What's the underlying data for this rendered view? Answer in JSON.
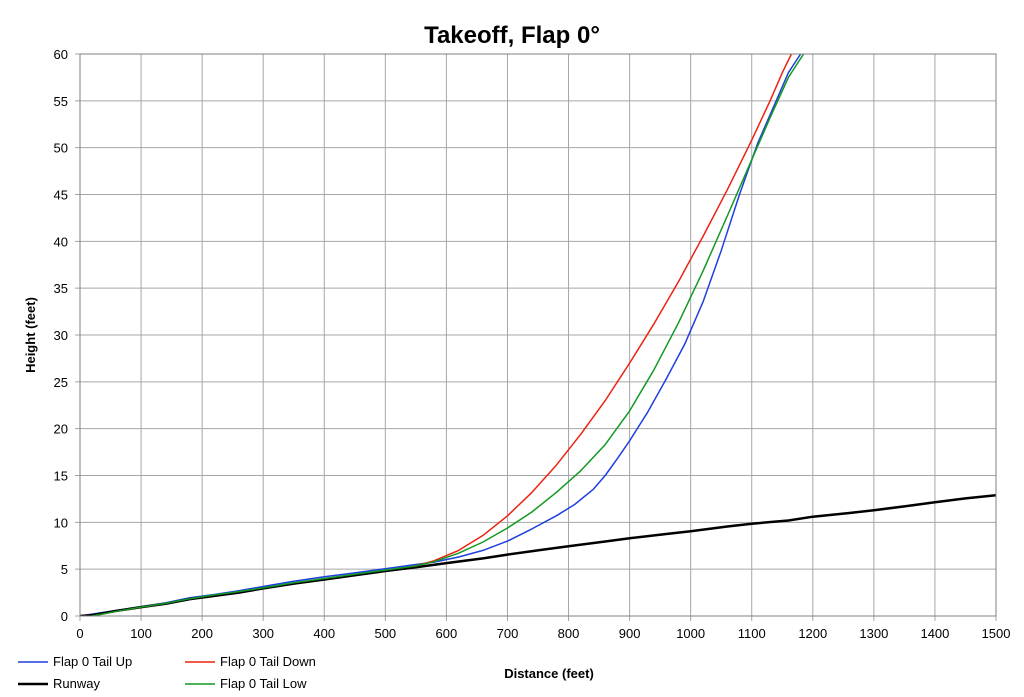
{
  "chart_data": {
    "type": "line",
    "title": "Takeoff, Flap 0°",
    "xlabel": "Distance (feet)",
    "ylabel": "Height (feet)",
    "xlim": [
      0,
      1500
    ],
    "ylim": [
      0,
      60
    ],
    "xticks": [
      0,
      100,
      200,
      300,
      400,
      500,
      600,
      700,
      800,
      900,
      1000,
      1100,
      1200,
      1300,
      1400,
      1500
    ],
    "yticks": [
      0,
      5,
      10,
      15,
      20,
      25,
      30,
      35,
      40,
      45,
      50,
      55,
      60
    ],
    "grid": true,
    "legend_position": "bottom-left",
    "series": [
      {
        "name": "Flap 0 Tail Up",
        "color": "#1f3fe0",
        "points": [
          [
            0,
            0
          ],
          [
            20,
            0.2
          ],
          [
            60,
            0.6
          ],
          [
            100,
            1.0
          ],
          [
            140,
            1.4
          ],
          [
            180,
            1.95
          ],
          [
            220,
            2.3
          ],
          [
            260,
            2.7
          ],
          [
            300,
            3.15
          ],
          [
            350,
            3.7
          ],
          [
            400,
            4.2
          ],
          [
            450,
            4.6
          ],
          [
            500,
            5.05
          ],
          [
            550,
            5.5
          ],
          [
            580,
            5.75
          ],
          [
            620,
            6.3
          ],
          [
            660,
            7.0
          ],
          [
            700,
            8.0
          ],
          [
            740,
            9.3
          ],
          [
            780,
            10.7
          ],
          [
            810,
            11.9
          ],
          [
            840,
            13.5
          ],
          [
            860,
            15.0
          ],
          [
            880,
            16.8
          ],
          [
            900,
            18.7
          ],
          [
            930,
            21.8
          ],
          [
            960,
            25.3
          ],
          [
            990,
            29.0
          ],
          [
            1020,
            33.5
          ],
          [
            1050,
            39.0
          ],
          [
            1080,
            45.0
          ],
          [
            1110,
            50.5
          ],
          [
            1140,
            55.0
          ],
          [
            1160,
            58.0
          ],
          [
            1180,
            60.0
          ]
        ]
      },
      {
        "name": "Flap 0 Tail Down",
        "color": "#ee2211",
        "points": [
          [
            20,
            0
          ],
          [
            60,
            0.5
          ],
          [
            100,
            0.9
          ],
          [
            140,
            1.3
          ],
          [
            180,
            1.8
          ],
          [
            220,
            2.2
          ],
          [
            260,
            2.55
          ],
          [
            300,
            2.95
          ],
          [
            350,
            3.45
          ],
          [
            400,
            3.95
          ],
          [
            450,
            4.4
          ],
          [
            500,
            4.85
          ],
          [
            550,
            5.35
          ],
          [
            580,
            5.9
          ],
          [
            620,
            7.0
          ],
          [
            660,
            8.6
          ],
          [
            700,
            10.7
          ],
          [
            740,
            13.2
          ],
          [
            780,
            16.1
          ],
          [
            820,
            19.4
          ],
          [
            860,
            23.0
          ],
          [
            900,
            27.0
          ],
          [
            940,
            31.2
          ],
          [
            980,
            35.7
          ],
          [
            1020,
            40.5
          ],
          [
            1060,
            45.5
          ],
          [
            1100,
            50.8
          ],
          [
            1130,
            55.0
          ],
          [
            1150,
            58.0
          ],
          [
            1165,
            60.0
          ]
        ]
      },
      {
        "name": "Runway",
        "color": "#000000",
        "points": [
          [
            0,
            0
          ],
          [
            20,
            0.1
          ],
          [
            60,
            0.55
          ],
          [
            100,
            0.95
          ],
          [
            140,
            1.3
          ],
          [
            180,
            1.8
          ],
          [
            220,
            2.15
          ],
          [
            260,
            2.5
          ],
          [
            300,
            2.95
          ],
          [
            350,
            3.45
          ],
          [
            400,
            3.9
          ],
          [
            450,
            4.35
          ],
          [
            500,
            4.8
          ],
          [
            550,
            5.2
          ],
          [
            600,
            5.65
          ],
          [
            660,
            6.15
          ],
          [
            700,
            6.55
          ],
          [
            760,
            7.1
          ],
          [
            800,
            7.45
          ],
          [
            860,
            7.95
          ],
          [
            900,
            8.3
          ],
          [
            960,
            8.75
          ],
          [
            1000,
            9.05
          ],
          [
            1060,
            9.55
          ],
          [
            1100,
            9.85
          ],
          [
            1160,
            10.2
          ],
          [
            1200,
            10.6
          ],
          [
            1260,
            11.0
          ],
          [
            1300,
            11.3
          ],
          [
            1350,
            11.7
          ],
          [
            1400,
            12.15
          ],
          [
            1450,
            12.55
          ],
          [
            1500,
            12.9
          ]
        ]
      },
      {
        "name": "Flap 0 Tail Low",
        "color": "#119922",
        "points": [
          [
            20,
            0
          ],
          [
            60,
            0.5
          ],
          [
            100,
            0.95
          ],
          [
            140,
            1.35
          ],
          [
            180,
            1.85
          ],
          [
            220,
            2.25
          ],
          [
            260,
            2.6
          ],
          [
            300,
            3.0
          ],
          [
            350,
            3.55
          ],
          [
            400,
            4.0
          ],
          [
            450,
            4.45
          ],
          [
            500,
            4.9
          ],
          [
            550,
            5.35
          ],
          [
            580,
            5.8
          ],
          [
            620,
            6.7
          ],
          [
            660,
            7.9
          ],
          [
            700,
            9.4
          ],
          [
            740,
            11.1
          ],
          [
            780,
            13.2
          ],
          [
            820,
            15.5
          ],
          [
            860,
            18.3
          ],
          [
            900,
            21.9
          ],
          [
            940,
            26.3
          ],
          [
            980,
            31.3
          ],
          [
            1020,
            36.8
          ],
          [
            1060,
            42.7
          ],
          [
            1100,
            48.7
          ],
          [
            1130,
            53.2
          ],
          [
            1160,
            57.5
          ],
          [
            1185,
            60.0
          ]
        ]
      }
    ]
  }
}
